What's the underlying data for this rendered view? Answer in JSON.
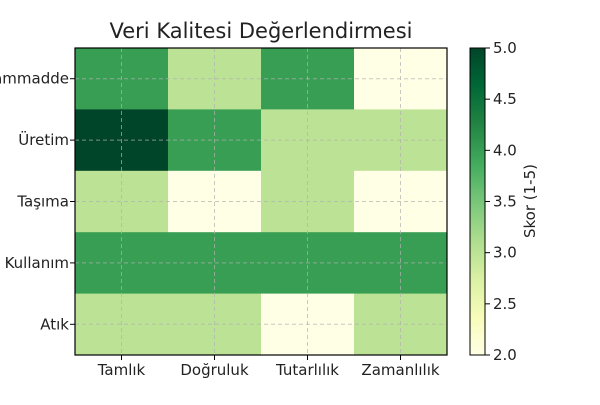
{
  "chart_data": {
    "type": "heatmap",
    "title": "Veri Kalitesi Değerlendirmesi",
    "x_categories": [
      "Tamlık",
      "Doğruluk",
      "Tutarlılık",
      "Zamanlılık"
    ],
    "y_categories": [
      "Hammadde",
      "Üretim",
      "Taşıma",
      "Kullanım",
      "Atık"
    ],
    "values": [
      [
        4,
        3,
        4,
        2
      ],
      [
        5,
        4,
        3,
        3
      ],
      [
        3,
        2,
        3,
        2
      ],
      [
        4,
        4,
        4,
        4
      ],
      [
        3,
        3,
        2,
        3
      ]
    ],
    "colorbar": {
      "label": "Skor (1-5)",
      "range": [
        2.0,
        5.0
      ],
      "ticks": [
        "2.0",
        "2.5",
        "3.0",
        "3.5",
        "4.0",
        "4.5",
        "5.0"
      ]
    },
    "colormap": "YlGn",
    "grid": true
  }
}
